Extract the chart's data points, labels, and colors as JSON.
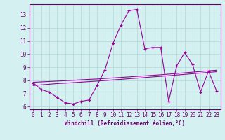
{
  "xlabel": "Windchill (Refroidissement éolien,°C)",
  "x_values": [
    0,
    1,
    2,
    3,
    4,
    5,
    6,
    7,
    8,
    9,
    10,
    11,
    12,
    13,
    14,
    15,
    16,
    17,
    18,
    19,
    20,
    21,
    22,
    23
  ],
  "line1": [
    7.8,
    7.3,
    7.1,
    6.7,
    6.3,
    6.2,
    6.4,
    6.5,
    7.6,
    8.8,
    10.8,
    12.2,
    13.3,
    13.4,
    10.4,
    10.5,
    10.5,
    6.4,
    9.1,
    10.1,
    9.2,
    7.1,
    8.7,
    7.2
  ],
  "line2": [
    7.6,
    7.65,
    7.7,
    7.75,
    7.78,
    7.82,
    7.86,
    7.9,
    7.94,
    7.98,
    8.03,
    8.07,
    8.12,
    8.16,
    8.21,
    8.26,
    8.3,
    8.35,
    8.4,
    8.45,
    8.5,
    8.55,
    8.6,
    8.65
  ],
  "line3": [
    7.85,
    7.88,
    7.91,
    7.94,
    7.97,
    8.0,
    8.04,
    8.07,
    8.1,
    8.14,
    8.18,
    8.22,
    8.26,
    8.3,
    8.34,
    8.38,
    8.42,
    8.47,
    8.52,
    8.57,
    8.62,
    8.67,
    8.72,
    8.77
  ],
  "line_color": "#990099",
  "bg_color": "#d4f0f0",
  "grid_color": "#b0d8d8",
  "axis_color": "#660066",
  "text_color": "#660066",
  "ylim": [
    5.8,
    13.8
  ],
  "xlim": [
    -0.5,
    23.5
  ],
  "yticks": [
    6,
    7,
    8,
    9,
    10,
    11,
    12,
    13
  ],
  "xticks": [
    0,
    1,
    2,
    3,
    4,
    5,
    6,
    7,
    8,
    9,
    10,
    11,
    12,
    13,
    14,
    15,
    16,
    17,
    18,
    19,
    20,
    21,
    22,
    23
  ],
  "tick_fontsize": 5.5,
  "xlabel_fontsize": 5.5
}
